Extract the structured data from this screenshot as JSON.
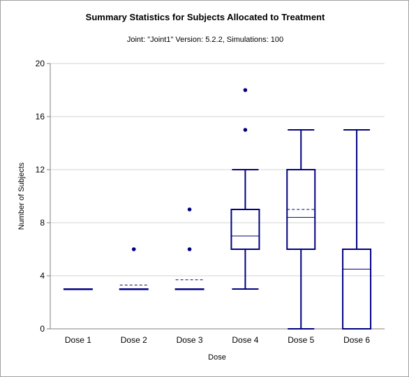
{
  "chart_data": {
    "type": "box",
    "title": "Summary Statistics for Subjects Allocated to Treatment",
    "subtitle": "Joint: \"Joint1\" Version: 5.2.2, Simulations: 100",
    "xlabel": "Dose",
    "ylabel": "Number of Subjects",
    "ylim": [
      0,
      20
    ],
    "yticks": [
      0,
      4,
      8,
      12,
      16,
      20
    ],
    "grid": "horizontal",
    "categories": [
      "Dose 1",
      "Dose 2",
      "Dose 3",
      "Dose 4",
      "Dose 5",
      "Dose 6"
    ],
    "boxes": [
      {
        "category": "Dose 1",
        "min": 3,
        "q1": 3,
        "median": 3,
        "q3": 3,
        "max": 3,
        "mean": 3,
        "outliers": []
      },
      {
        "category": "Dose 2",
        "min": 3,
        "q1": 3,
        "median": 3,
        "q3": 3,
        "max": 3,
        "mean": 3.3,
        "outliers": [
          6
        ]
      },
      {
        "category": "Dose 3",
        "min": 3,
        "q1": 3,
        "median": 3,
        "q3": 3,
        "max": 3,
        "mean": 3.7,
        "outliers": [
          6,
          9
        ]
      },
      {
        "category": "Dose 4",
        "min": 3,
        "q1": 6,
        "median": 7,
        "q3": 9,
        "max": 12,
        "mean": 7,
        "outliers": [
          15,
          18
        ]
      },
      {
        "category": "Dose 5",
        "min": 0,
        "q1": 6,
        "median": 8.4,
        "q3": 12,
        "max": 15,
        "mean": 9,
        "outliers": []
      },
      {
        "category": "Dose 6",
        "min": 0,
        "q1": 0,
        "median": 4.5,
        "q3": 6,
        "max": 15,
        "mean": 4.5,
        "outliers": []
      }
    ],
    "colors": {
      "series": "#000080",
      "grid": "#d3d3d3",
      "axis": "#808080"
    }
  }
}
